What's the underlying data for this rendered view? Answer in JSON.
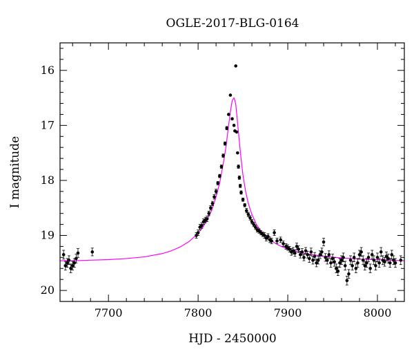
{
  "chart_data": {
    "type": "scatter",
    "title": "OGLE-2017-BLG-0164",
    "xlabel": "HJD - 2450000",
    "ylabel": "I magnitude",
    "xlim": [
      7646,
      8030
    ],
    "ylim": [
      20.2,
      15.5
    ],
    "y_inverted": true,
    "x_ticks": [
      7700,
      7800,
      7900,
      8000
    ],
    "y_ticks": [
      16,
      17,
      18,
      19,
      20
    ],
    "grid": false,
    "series": [
      {
        "style": "points-with-errorbars",
        "color": "#000000",
        "points": [
          [
            7650,
            19.35,
            0.08
          ],
          [
            7652,
            19.55,
            0.08
          ],
          [
            7654,
            19.5,
            0.08
          ],
          [
            7656,
            19.45,
            0.08
          ],
          [
            7658,
            19.6,
            0.08
          ],
          [
            7660,
            19.55,
            0.08
          ],
          [
            7662,
            19.5,
            0.08
          ],
          [
            7664,
            19.42,
            0.08
          ],
          [
            7666,
            19.32,
            0.08
          ],
          [
            7682,
            19.3,
            0.07
          ],
          [
            7798,
            19.0,
            0.05
          ],
          [
            7800,
            18.95,
            0.05
          ],
          [
            7802,
            18.85,
            0.05
          ],
          [
            7804,
            18.82,
            0.05
          ],
          [
            7806,
            18.75,
            0.05
          ],
          [
            7808,
            18.72,
            0.05
          ],
          [
            7810,
            18.7,
            0.05
          ],
          [
            7812,
            18.6,
            0.04
          ],
          [
            7814,
            18.5,
            0.04
          ],
          [
            7816,
            18.42,
            0.04
          ],
          [
            7818,
            18.3,
            0.04
          ],
          [
            7820,
            18.2,
            0.04
          ],
          [
            7822,
            18.05,
            0.03
          ],
          [
            7824,
            17.92,
            0.03
          ],
          [
            7826,
            17.75,
            0.03
          ],
          [
            7828,
            17.55,
            0.03
          ],
          [
            7830,
            17.33,
            0.03
          ],
          [
            7832,
            17.05,
            0.03
          ],
          [
            7834,
            16.8,
            0.02
          ],
          [
            7836,
            16.45,
            0.02
          ],
          [
            7838,
            16.88,
            0.02
          ],
          [
            7840,
            17.0,
            0.02
          ],
          [
            7841,
            17.1,
            0.02
          ],
          [
            7842,
            15.92,
            0.02
          ],
          [
            7843,
            17.12,
            0.02
          ],
          [
            7844,
            17.5,
            0.02
          ],
          [
            7845,
            17.75,
            0.03
          ],
          [
            7846,
            17.95,
            0.03
          ],
          [
            7847,
            18.1,
            0.03
          ],
          [
            7848,
            18.22,
            0.03
          ],
          [
            7850,
            18.35,
            0.03
          ],
          [
            7852,
            18.45,
            0.03
          ],
          [
            7854,
            18.55,
            0.04
          ],
          [
            7856,
            18.62,
            0.04
          ],
          [
            7858,
            18.68,
            0.04
          ],
          [
            7860,
            18.75,
            0.04
          ],
          [
            7862,
            18.8,
            0.04
          ],
          [
            7864,
            18.85,
            0.04
          ],
          [
            7866,
            18.9,
            0.04
          ],
          [
            7868,
            18.92,
            0.04
          ],
          [
            7870,
            18.95,
            0.04
          ],
          [
            7872,
            18.98,
            0.04
          ],
          [
            7874,
            19.0,
            0.05
          ],
          [
            7876,
            19.05,
            0.05
          ],
          [
            7878,
            19.02,
            0.05
          ],
          [
            7880,
            19.08,
            0.05
          ],
          [
            7882,
            19.1,
            0.05
          ],
          [
            7885,
            18.95,
            0.05
          ],
          [
            7888,
            19.1,
            0.05
          ],
          [
            7892,
            19.08,
            0.05
          ],
          [
            7895,
            19.15,
            0.05
          ],
          [
            7898,
            19.2,
            0.05
          ],
          [
            7900,
            19.22,
            0.05
          ],
          [
            7902,
            19.25,
            0.05
          ],
          [
            7904,
            19.3,
            0.06
          ],
          [
            7906,
            19.28,
            0.06
          ],
          [
            7908,
            19.32,
            0.06
          ],
          [
            7910,
            19.2,
            0.06
          ],
          [
            7912,
            19.25,
            0.06
          ],
          [
            7914,
            19.35,
            0.06
          ],
          [
            7916,
            19.3,
            0.06
          ],
          [
            7918,
            19.4,
            0.06
          ],
          [
            7920,
            19.28,
            0.06
          ],
          [
            7922,
            19.35,
            0.06
          ],
          [
            7924,
            19.42,
            0.07
          ],
          [
            7926,
            19.3,
            0.07
          ],
          [
            7928,
            19.45,
            0.07
          ],
          [
            7930,
            19.38,
            0.07
          ],
          [
            7932,
            19.5,
            0.07
          ],
          [
            7934,
            19.45,
            0.07
          ],
          [
            7936,
            19.35,
            0.07
          ],
          [
            7938,
            19.3,
            0.07
          ],
          [
            7940,
            19.12,
            0.07
          ],
          [
            7942,
            19.4,
            0.07
          ],
          [
            7944,
            19.45,
            0.07
          ],
          [
            7946,
            19.35,
            0.07
          ],
          [
            7948,
            19.5,
            0.08
          ],
          [
            7950,
            19.42,
            0.08
          ],
          [
            7952,
            19.48,
            0.08
          ],
          [
            7954,
            19.6,
            0.08
          ],
          [
            7956,
            19.65,
            0.08
          ],
          [
            7958,
            19.5,
            0.08
          ],
          [
            7960,
            19.45,
            0.08
          ],
          [
            7962,
            19.4,
            0.08
          ],
          [
            7964,
            19.55,
            0.08
          ],
          [
            7966,
            19.82,
            0.08
          ],
          [
            7968,
            19.7,
            0.08
          ],
          [
            7970,
            19.45,
            0.08
          ],
          [
            7972,
            19.55,
            0.08
          ],
          [
            7974,
            19.4,
            0.08
          ],
          [
            7976,
            19.6,
            0.08
          ],
          [
            7978,
            19.5,
            0.08
          ],
          [
            7980,
            19.35,
            0.08
          ],
          [
            7982,
            19.3,
            0.08
          ],
          [
            7984,
            19.45,
            0.08
          ],
          [
            7986,
            19.55,
            0.08
          ],
          [
            7988,
            19.5,
            0.08
          ],
          [
            7990,
            19.4,
            0.08
          ],
          [
            7992,
            19.6,
            0.08
          ],
          [
            7994,
            19.35,
            0.08
          ],
          [
            7996,
            19.45,
            0.08
          ],
          [
            7998,
            19.55,
            0.08
          ],
          [
            8000,
            19.4,
            0.08
          ],
          [
            8002,
            19.5,
            0.08
          ],
          [
            8004,
            19.3,
            0.08
          ],
          [
            8006,
            19.45,
            0.08
          ],
          [
            8008,
            19.48,
            0.08
          ],
          [
            8010,
            19.38,
            0.08
          ],
          [
            8012,
            19.42,
            0.08
          ],
          [
            8014,
            19.5,
            0.08
          ],
          [
            8016,
            19.35,
            0.08
          ],
          [
            8018,
            19.45,
            0.08
          ],
          [
            8020,
            19.5,
            0.08
          ],
          [
            8026,
            19.45,
            0.08
          ]
        ]
      },
      {
        "style": "line",
        "color": "#ff00ff",
        "x": [
          7646,
          7660,
          7680,
          7700,
          7720,
          7740,
          7760,
          7770,
          7780,
          7790,
          7800,
          7805,
          7810,
          7815,
          7820,
          7824,
          7828,
          7831,
          7834,
          7836,
          7838,
          7840,
          7841,
          7842,
          7844,
          7846,
          7848,
          7850,
          7853,
          7856,
          7860,
          7865,
          7870,
          7880,
          7890,
          7900,
          7920,
          7940,
          7960,
          7980,
          8000,
          8030
        ],
        "y": [
          19.46,
          19.46,
          19.45,
          19.44,
          19.42,
          19.39,
          19.33,
          19.28,
          19.21,
          19.11,
          18.96,
          18.86,
          18.72,
          18.55,
          18.3,
          18.05,
          17.7,
          17.4,
          17.0,
          16.75,
          16.55,
          16.5,
          16.55,
          16.62,
          16.95,
          17.3,
          17.62,
          17.9,
          18.2,
          18.42,
          18.62,
          18.8,
          18.92,
          19.08,
          19.18,
          19.25,
          19.33,
          19.38,
          19.41,
          19.43,
          19.44,
          19.46
        ]
      }
    ]
  }
}
